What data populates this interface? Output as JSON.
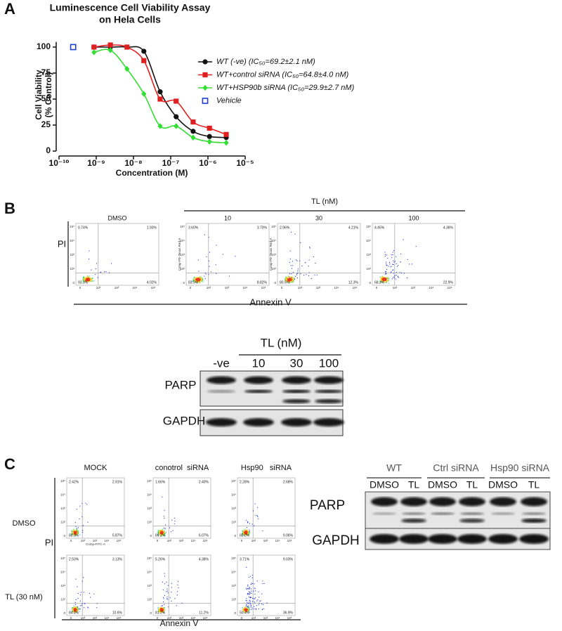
{
  "chart_data": {
    "type": "line",
    "title": [
      "Luminescence Cell Viability Assay",
      "on Hela Cells"
    ],
    "x_label": "Concentration (M)",
    "y_label": [
      "Cell Viability",
      "(% Control)"
    ],
    "xlim": [
      1e-10,
      1e-05
    ],
    "xlog": true,
    "xticks": [
      {
        "value": 1e-10,
        "label": "10⁻¹⁰"
      },
      {
        "value": 1e-09,
        "label": "10⁻⁹"
      },
      {
        "value": 1e-08,
        "label": "10⁻⁸"
      },
      {
        "value": 1e-07,
        "label": "10⁻⁷"
      },
      {
        "value": 1e-06,
        "label": "10⁻⁶"
      },
      {
        "value": 1e-05,
        "label": "10⁻⁵"
      }
    ],
    "ylim": [
      0,
      105
    ],
    "yticks": [
      0,
      25,
      50,
      75,
      100
    ],
    "series": [
      {
        "name": "WT (-ve) (IC₅₀=69.2±2.1 nM)",
        "color": "#111111",
        "marker": "circle",
        "line": true,
        "x": [
          8.7e-10,
          2.4e-09,
          6.7e-09,
          1.9e-08,
          5.2e-08,
          1.4e-07,
          4e-07,
          1.1e-06,
          3.1e-06
        ],
        "values": [
          100,
          100,
          100,
          96,
          57,
          33,
          19,
          14,
          13
        ]
      },
      {
        "name": "WT+control siRNA (IC₅₀=64.8±4.0 nM)",
        "color": "#e02020",
        "marker": "square",
        "line": true,
        "x": [
          8.7e-10,
          2.4e-09,
          6.7e-09,
          1.9e-08,
          5.2e-08,
          1.4e-07,
          4e-07,
          1.1e-06,
          3.1e-06
        ],
        "values": [
          100,
          102,
          100,
          87,
          50,
          48,
          28,
          22,
          16
        ]
      },
      {
        "name": "WT+HSP90b siRNA (IC₅₀=29.9±2.7 nM)",
        "color": "#33dd33",
        "marker": "diamond",
        "line": true,
        "x": [
          8.7e-10,
          2.4e-09,
          6.7e-09,
          1.9e-08,
          5.2e-08,
          1.4e-07,
          4e-07,
          1.1e-06,
          3.1e-06
        ],
        "values": [
          95,
          97,
          79,
          55,
          24,
          24,
          13,
          9,
          8
        ]
      },
      {
        "name": "Vehicle",
        "color": "#1f3fd0",
        "marker": "open-square",
        "line": false,
        "x": [
          2.4e-10
        ],
        "values": [
          100
        ]
      }
    ]
  },
  "panel_labels": [
    "A",
    "B",
    "C"
  ],
  "flow_ticks": [
    "0",
    "10²",
    "10³",
    "10⁴",
    "10⁵"
  ],
  "panel_b": {
    "group_label": "TL (nM)",
    "axis_y": "PI",
    "axis_x": "Annexin V",
    "y_axis_title": "Comp-PE-Texas Red-A",
    "plots": [
      {
        "title": "DMSO",
        "quadrants": [
          "0.74%",
          "1.93%",
          "93.3%",
          "4.02%"
        ]
      },
      {
        "title": "10",
        "quadrants": [
          "3.60%",
          "3.70%",
          "83.9%",
          "8.82%"
        ]
      },
      {
        "title": "30",
        "quadrants": [
          "2.96%",
          "4.21%",
          "80.5%",
          "12.3%"
        ]
      },
      {
        "title": "100",
        "quadrants": [
          "4.45%",
          "4.36%",
          "68.3%",
          "22.9%"
        ]
      }
    ],
    "blot": {
      "group_label": "TL (nM)",
      "lanes": [
        "-ve",
        "10",
        "30",
        "100"
      ],
      "rows": [
        "PARP",
        "GAPDH"
      ]
    }
  },
  "panel_c": {
    "columns": [
      "MOCK",
      "conotrol  siRNA",
      "Hsp90   siRNA"
    ],
    "rows": [
      "DMSO",
      "TL (30 nM)"
    ],
    "axis_y": "PI",
    "axis_x": "Annexin V",
    "x_axis_title": "Comp-FITC-A",
    "plots": [
      [
        {
          "quadrants": [
            "2.42%",
            "2.91%",
            "88.8%",
            "5.87%"
          ]
        },
        {
          "quadrants": [
            "1.66%",
            "2.40%",
            "89.2%",
            "6.07%"
          ]
        },
        {
          "quadrants": [
            "2.28%",
            "2.68%",
            "88.0%",
            "9.06%"
          ]
        }
      ],
      [
        {
          "quadrants": [
            "2.50%",
            "3.13%",
            "84.0%",
            "10.6%"
          ]
        },
        {
          "quadrants": [
            "5.26%",
            "4.38%",
            "81.2%",
            "11.2%"
          ]
        },
        {
          "quadrants": [
            "3.71%",
            "9.03%",
            "50.4%",
            "36.9%"
          ]
        }
      ]
    ],
    "blot": {
      "groups": [
        "WT",
        "Ctrl siRNA",
        "Hsp90 siRNA"
      ],
      "lanes": [
        "DMSO",
        "TL",
        "DMSO",
        "TL",
        "DMSO",
        "TL"
      ],
      "rows": [
        "PARP",
        "GAPDH"
      ]
    }
  }
}
